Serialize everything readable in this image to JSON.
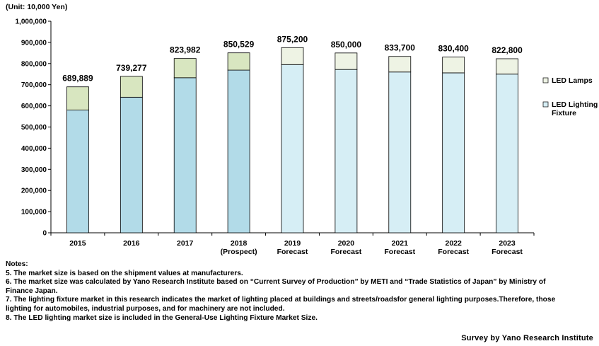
{
  "chart_data": {
    "type": "bar",
    "stacked": true,
    "unit_label": "(Unit: 10,000 Yen)",
    "categories": [
      [
        "2015"
      ],
      [
        "2016"
      ],
      [
        "2017"
      ],
      [
        "2018",
        "(Prospect)"
      ],
      [
        "2019",
        "Forecast"
      ],
      [
        "2020",
        "Forecast"
      ],
      [
        "2021",
        "Forecast"
      ],
      [
        "2022",
        "Forecast"
      ],
      [
        "2023",
        "Forecast"
      ]
    ],
    "series": [
      {
        "name": "LED Lighting Fixture",
        "values": [
          580000,
          641000,
          733000,
          769000,
          795000,
          772000,
          760000,
          756000,
          750000
        ]
      },
      {
        "name": "LED Lamps",
        "values": [
          109889,
          98277,
          90982,
          81529,
          80200,
          78000,
          73700,
          74400,
          72800
        ]
      }
    ],
    "totals": [
      689889,
      739277,
      823982,
      850529,
      875200,
      850000,
      833700,
      830400,
      822800
    ],
    "total_labels": [
      "689,889",
      "739,277",
      "823,982",
      "850,529",
      "875,200",
      "850,000",
      "833,700",
      "830,400",
      "822,800"
    ],
    "forecast_from_index": 4,
    "ylim": [
      0,
      1000000
    ],
    "yticks": [
      0,
      100000,
      200000,
      300000,
      400000,
      500000,
      600000,
      700000,
      800000,
      900000,
      1000000
    ],
    "ytick_labels": [
      "0",
      "100,000",
      "200,000",
      "300,000",
      "400,000",
      "500,000",
      "600,000",
      "700,000",
      "800,000",
      "900,000",
      "1,000,000"
    ],
    "grid": false,
    "legend": {
      "position": "right",
      "entries": [
        {
          "label": [
            "LED Lamps"
          ],
          "series": 1
        },
        {
          "label": [
            "LED Lighting",
            "Fixture"
          ],
          "series": 0
        }
      ]
    },
    "colors": {
      "fixture_actual": "#b2dbe8",
      "fixture_forecast": "#d6eef5",
      "lamps_actual": "#d8e6c0",
      "lamps_forecast": "#eef3e4",
      "outline": "#000000"
    }
  },
  "notes": {
    "heading": "Notes:",
    "lines": [
      "5. The market size is based on the shipment values at manufacturers.",
      "6. The market size was calculated by Yano Research Institute based on “Current Survey of Production” by METI and “Trade Statistics of Japan” by  Ministry of",
      "Finance Japan.",
      "7. The lighting fixture market in this research indicates the market of lighting placed at buildings and streets/roadsfor general lighting purposes.Therefore, those",
      "lighting  for automobiles, industrial purposes, and for machinery are not included.",
      "8. The LED lighting market size is included in the General-Use Lighting Fixture Market Size."
    ]
  },
  "source": "Survey by Yano Research Institute"
}
